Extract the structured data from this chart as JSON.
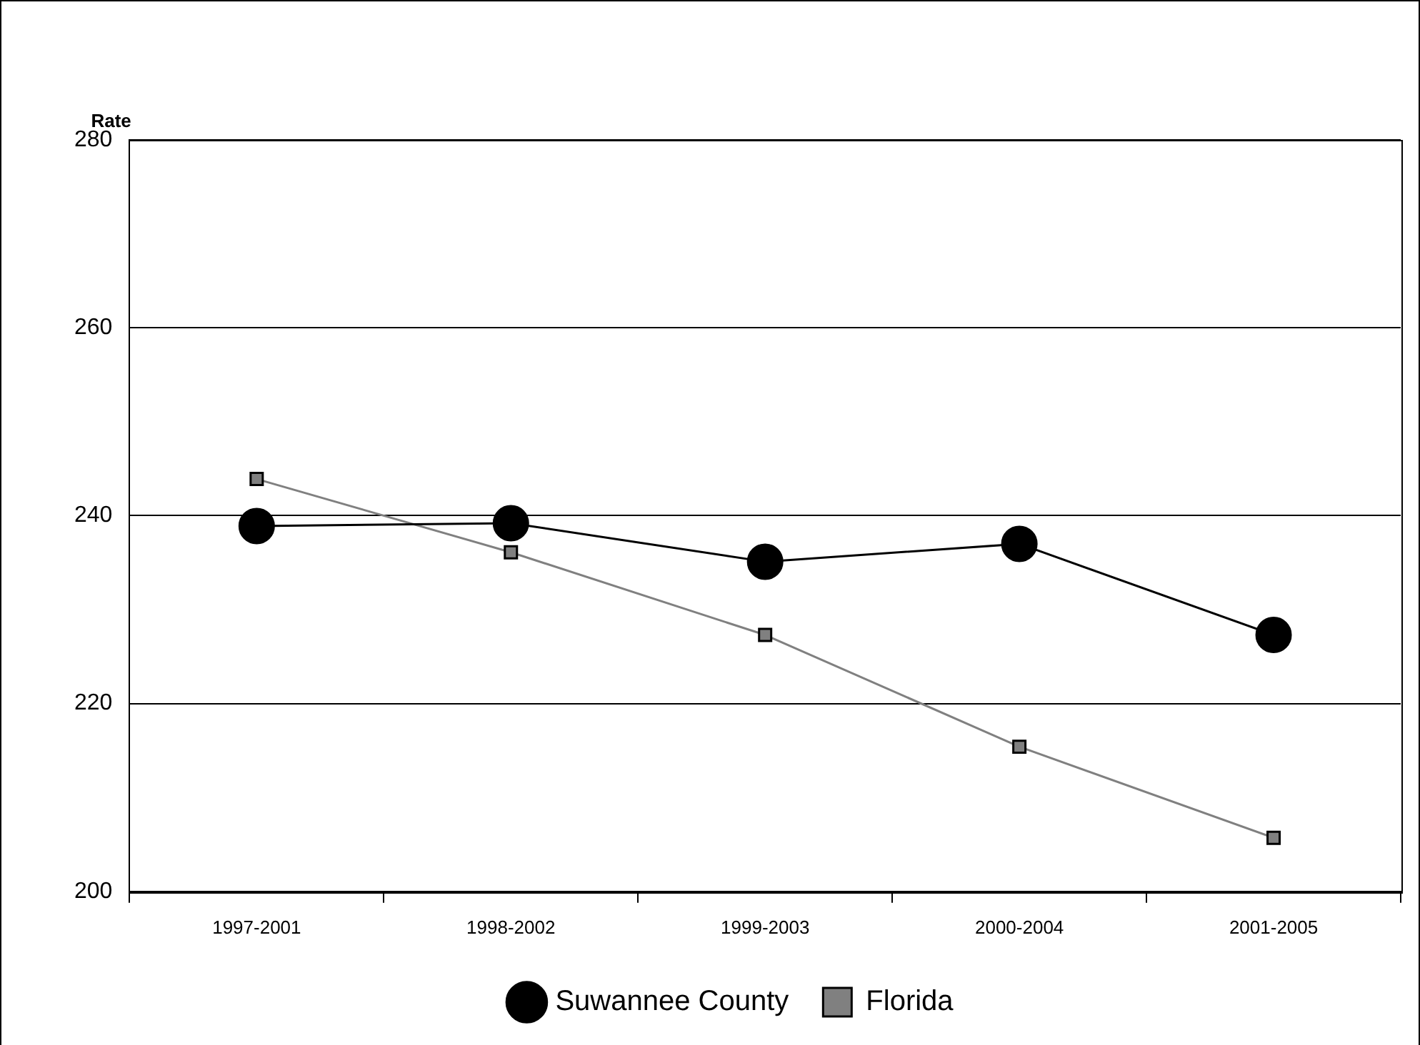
{
  "chart_data": {
    "type": "line",
    "ylabel": "Rate",
    "categories": [
      "1997-2001",
      "1998-2002",
      "1999-2003",
      "2000-2004",
      "2001-2005"
    ],
    "series": [
      {
        "name": "Suwannee County",
        "color": "#000000",
        "marker": "circle",
        "values": [
          238.9,
          239.2,
          235.1,
          237.0,
          227.3
        ]
      },
      {
        "name": "Florida",
        "color": "#808080",
        "marker": "square",
        "values": [
          243.9,
          236.1,
          227.3,
          215.4,
          205.7
        ]
      }
    ],
    "ylim": [
      200,
      280
    ],
    "yticks": [
      200,
      220,
      240,
      260,
      280
    ],
    "grid": "y",
    "legend": "bottom",
    "line_style": "solid"
  }
}
